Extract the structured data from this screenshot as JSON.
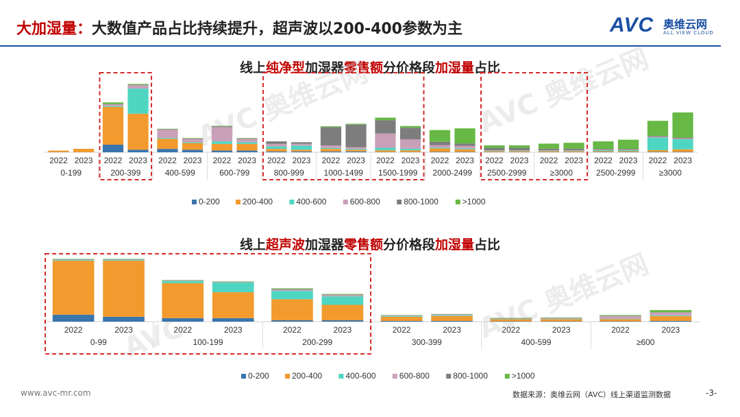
{
  "header": {
    "title_accent": "大加湿量：",
    "title_rest": "大数值产品占比持续提升，超声波以200-400参数为主",
    "logo_text": "AVC",
    "logo_cn": "奥维云网",
    "logo_en": "ALL VIEW CLOUD"
  },
  "watermark": {
    "brand": "AVC",
    "cn": "奥维云网",
    "en": "ALL VIEW CLOUD"
  },
  "colors": {
    "0-200": "#3a75ad",
    "200-400": "#f29a2e",
    "400-600": "#4fd6c2",
    "600-800": "#c9a0b8",
    "800-1000": "#7d7d7d",
    ">1000": "#67b845",
    "highlight_box": "#d62b2b"
  },
  "chart_data": [
    {
      "type": "bar",
      "stacked": true,
      "title_parts": [
        {
          "text": "线上",
          "red": false
        },
        {
          "text": "纯净型",
          "red": true
        },
        {
          "text": "加湿器",
          "red": false
        },
        {
          "text": "零售额",
          "red": true
        },
        {
          "text": "分价格段",
          "red": false
        },
        {
          "text": "加湿量",
          "red": true
        },
        {
          "text": "占比",
          "red": false
        }
      ],
      "price_groups": [
        "0-199",
        "200-399",
        "400-599",
        "600-799",
        "800-999",
        "1000-1499",
        "1500-1999",
        "2000-2499",
        "2500-2999",
        "≥3000"
      ],
      "years": [
        "2022",
        "2023"
      ],
      "legend": [
        "0-200",
        "200-400",
        "400-600",
        "600-800",
        "800-1000",
        ">1000"
      ],
      "series": [
        {
          "name": "0-200",
          "values": [
            0.2,
            0.1,
            9,
            3,
            4,
            3,
            2,
            2,
            1,
            1,
            1,
            1,
            0.3,
            0.3,
            0.5,
            0.5,
            0.3,
            0.3,
            0.3,
            0.3
          ]
        },
        {
          "name": "200-400",
          "values": [
            1.8,
            4,
            45,
            43,
            12,
            8,
            8,
            8,
            3,
            2,
            3,
            2,
            2,
            2,
            4,
            3,
            1,
            1,
            1,
            1
          ]
        },
        {
          "name": "400-600",
          "values": [
            0,
            0,
            1,
            30,
            1,
            1,
            3,
            2,
            3,
            5,
            1,
            1,
            3,
            2,
            1,
            1,
            0.5,
            0.5,
            0.5,
            0.5
          ]
        },
        {
          "name": "600-800",
          "values": [
            0,
            0,
            2,
            4,
            10,
            4,
            17,
            4,
            3,
            2,
            3,
            2,
            17,
            11,
            3,
            3,
            0.5,
            0.5,
            0.5,
            0.5
          ]
        },
        {
          "name": "800-1000",
          "values": [
            0,
            0,
            0.5,
            0.5,
            0.5,
            0.5,
            1,
            0.5,
            3,
            2,
            22,
            27,
            16,
            14,
            4,
            3,
            3,
            3,
            2,
            2
          ]
        },
        {
          "name": ">1000",
          "values": [
            0,
            0,
            2,
            1,
            0.5,
            0.5,
            0.5,
            0.5,
            0,
            0,
            1,
            1,
            3,
            2,
            14,
            18,
            3,
            3,
            6,
            7
          ]
        }
      ],
      "extra_groups_note": "",
      "tail_groups": [
        "2500-2999",
        "≥3000"
      ],
      "tail_series": [
        {
          "name": "0-200",
          "values": [
            0.5,
            0.5,
            0.5,
            0.5
          ]
        },
        {
          "name": "200-400",
          "values": [
            1,
            1,
            2,
            3
          ]
        },
        {
          "name": "400-600",
          "values": [
            1,
            1,
            15,
            12
          ]
        },
        {
          "name": "600-800",
          "values": [
            0.5,
            0.5,
            1,
            1
          ]
        },
        {
          "name": "800-1000",
          "values": [
            1,
            1,
            1,
            1
          ]
        },
        {
          "name": ">1000",
          "values": [
            9,
            11,
            18,
            30
          ]
        }
      ],
      "highlight_groups": [
        [
          "200-399"
        ],
        [
          "800-999",
          "1500-1999"
        ],
        [
          "2500-2999",
          "≥3000"
        ]
      ],
      "legend_placement": "bottom",
      "grid": false
    },
    {
      "type": "bar",
      "stacked": true,
      "title_parts": [
        {
          "text": "线上",
          "red": false
        },
        {
          "text": "超声波",
          "red": true
        },
        {
          "text": "加湿器",
          "red": false
        },
        {
          "text": "零售额",
          "red": true
        },
        {
          "text": "分价格段",
          "red": false
        },
        {
          "text": "加湿量",
          "red": true
        },
        {
          "text": "占比",
          "red": false
        }
      ],
      "price_groups": [
        "0-99",
        "100-199",
        "200-299",
        "300-399",
        "400-599",
        "≥600"
      ],
      "years": [
        "2022",
        "2023"
      ],
      "legend": [
        "0-200",
        "200-400",
        "400-600",
        "600-800",
        "800-1000",
        ">1000"
      ],
      "series": [
        {
          "name": "0-200",
          "values": [
            10,
            7,
            5,
            5,
            2,
            2,
            1,
            1,
            0.5,
            0.5,
            0.5,
            1
          ]
        },
        {
          "name": "200-400",
          "values": [
            77,
            80,
            50,
            37,
            30,
            22,
            6,
            7,
            3,
            3,
            3,
            7
          ]
        },
        {
          "name": "400-600",
          "values": [
            1,
            1,
            3,
            14,
            12,
            12,
            1,
            1,
            0.5,
            0.5,
            0.5,
            1
          ]
        },
        {
          "name": "600-800",
          "values": [
            0.5,
            0.5,
            0.5,
            0.5,
            2,
            2,
            0.5,
            1,
            0.5,
            1,
            4,
            4
          ]
        },
        {
          "name": "800-1000",
          "values": [
            0.5,
            0.5,
            0.5,
            0.5,
            0.5,
            0.5,
            0.5,
            0.5,
            0.5,
            0.5,
            0.5,
            0.5
          ]
        },
        {
          "name": ">1000",
          "values": [
            0.5,
            0.5,
            0.5,
            0.5,
            1,
            1,
            0.5,
            0.5,
            0.5,
            0.5,
            1,
            3
          ]
        }
      ],
      "highlight_groups": [
        [
          "0-99",
          "200-299"
        ]
      ],
      "legend_placement": "bottom",
      "grid": false
    }
  ],
  "footer": {
    "website": "www.avc-mr.com",
    "source": "数据来源：奥维云网（AVC）线上渠道监测数据",
    "page": "-3-"
  }
}
